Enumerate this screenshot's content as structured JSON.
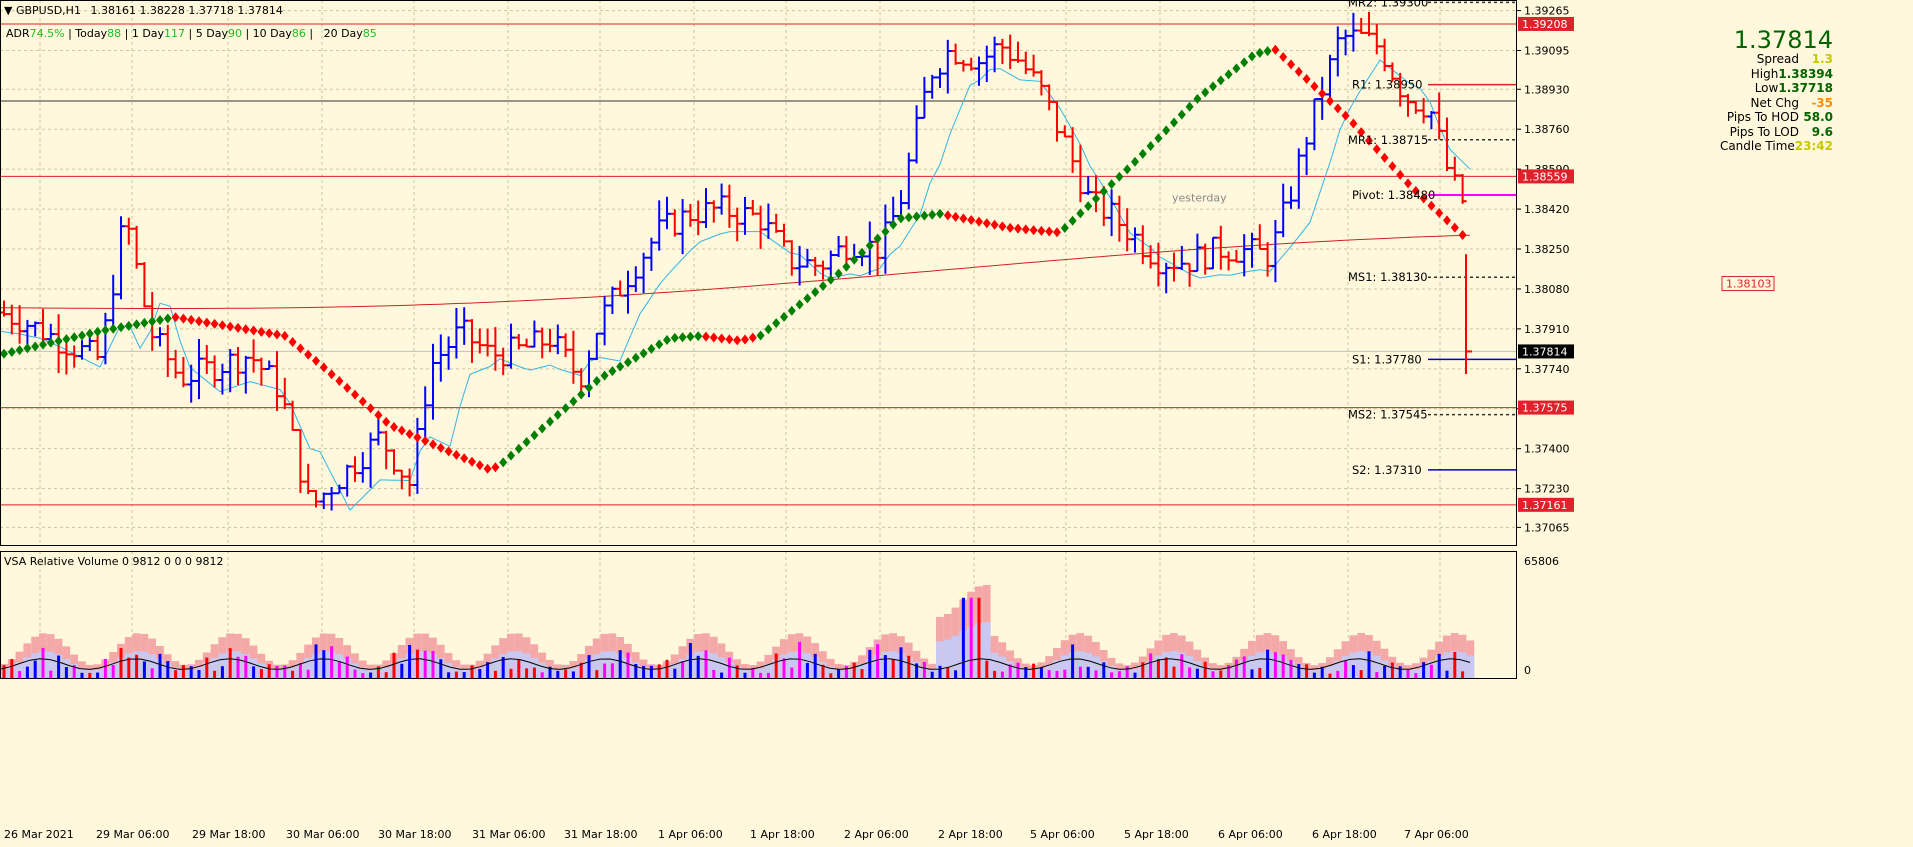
{
  "header": {
    "symbol_tf": "GBPUSD,H1",
    "ohlc": "1.38161 1.38228 1.37718 1.37814",
    "adr_label": "ADR",
    "adr_value": "74.5%",
    "today_label": "Today",
    "today_value": "88",
    "day1_label": "1 Day",
    "day1_value": "117",
    "day5_label": "5 Day",
    "day5_value": "90",
    "day10_label": "10 Day",
    "day10_value": "86",
    "day20_label": "20 Day",
    "day20_value": "85"
  },
  "info_panel": {
    "price": "1.37814",
    "rows": [
      {
        "label": "Spread",
        "value": "1.3",
        "color": "#c8c800"
      },
      {
        "label": "High",
        "value": "1.38394",
        "color": "#006400"
      },
      {
        "label": "Low",
        "value": "1.37718",
        "color": "#006400"
      },
      {
        "label": "Net Chg",
        "value": "-35",
        "color": "#ff8c00"
      },
      {
        "label": "Pips To HOD",
        "value": "58.0",
        "color": "#006400"
      },
      {
        "label": "Pips To LOD",
        "value": "9.6",
        "color": "#006400"
      },
      {
        "label": "Candle Time",
        "value": "23:42",
        "color": "#c8c800"
      }
    ]
  },
  "price_axis": [
    "1.39265",
    "1.39095",
    "1.38930",
    "1.38760",
    "1.38590",
    "1.38420",
    "1.38250",
    "1.38080",
    "1.37910",
    "1.37740",
    "1.37570",
    "1.37400",
    "1.37230",
    "1.37065"
  ],
  "price_tags": [
    {
      "value": "1.39208",
      "price": 1.39208,
      "bg": "#e0202a"
    },
    {
      "value": "1.38559",
      "price": 1.38559,
      "bg": "#e0202a"
    },
    {
      "value": "1.37814",
      "price": 1.37814,
      "bg": "#000000"
    },
    {
      "value": "1.37575",
      "price": 1.37575,
      "bg": "#e0202a"
    },
    {
      "value": "1.37161",
      "price": 1.37161,
      "bg": "#e0202a"
    }
  ],
  "pivots": [
    {
      "label": "MR2: 1.39300",
      "price": 1.393
    },
    {
      "label": "R1: 1.38950",
      "price": 1.3895
    },
    {
      "label": "MR1: 1.38715",
      "price": 1.38715
    },
    {
      "label": "Pivot: 1.38480",
      "price": 1.3848
    },
    {
      "label": "MS1: 1.38130",
      "price": 1.3813
    },
    {
      "label": "S1: 1.37780",
      "price": 1.3778
    },
    {
      "label": "MS2: 1.37545",
      "price": 1.37545
    },
    {
      "label": "S2: 1.37310",
      "price": 1.3731
    }
  ],
  "yesterday_label": "yesterday",
  "tag_1_38103": "1.38103",
  "time_axis": [
    "26 Mar 2021",
    "29 Mar 06:00",
    "29 Mar 18:00",
    "30 Mar 06:00",
    "30 Mar 18:00",
    "31 Mar 06:00",
    "31 Mar 18:00",
    "1 Apr 06:00",
    "1 Apr 18:00",
    "2 Apr 06:00",
    "2 Apr 18:00",
    "5 Apr 06:00",
    "5 Apr 18:00",
    "6 Apr 06:00",
    "6 Apr 18:00",
    "7 Apr 06:00"
  ],
  "volume_panel": {
    "title": "VSA Relative Volume 0 9812 0 0 0 9812",
    "max_label": "65806",
    "zero_label": "0"
  },
  "colors": {
    "background": "#fff8dc",
    "bull": "#0000ff",
    "bear": "#ff0000",
    "trail_up": "#008000",
    "trail_down": "#ff0000"
  }
}
